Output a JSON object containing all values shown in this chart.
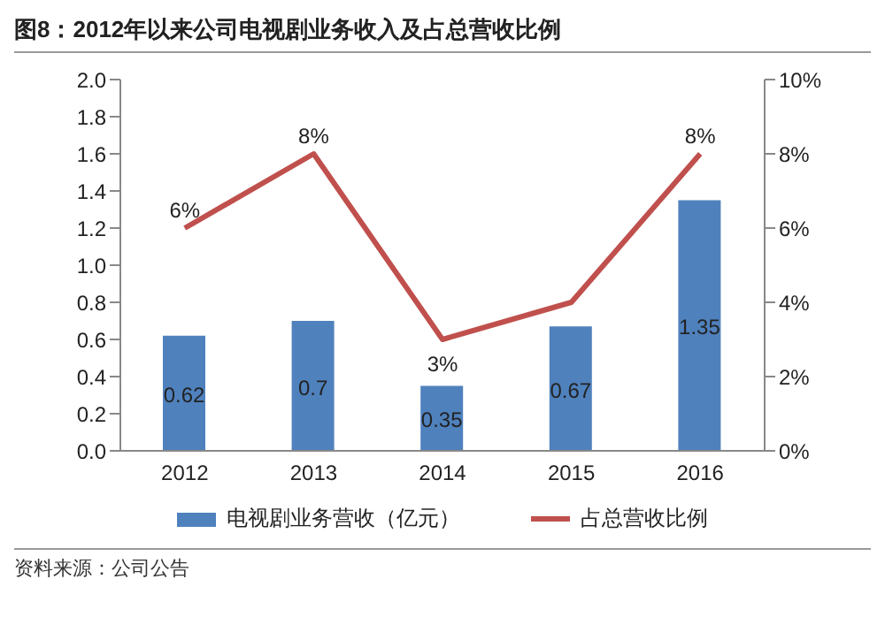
{
  "chart_data": {
    "type": "bar",
    "title": "图8：2012年以来公司电视剧业务收入及占总营收比例",
    "categories": [
      "2012",
      "2013",
      "2014",
      "2015",
      "2016"
    ],
    "series": [
      {
        "name": "电视剧业务营收（亿元）",
        "color": "#4f81bd",
        "values": [
          0.62,
          0.7,
          0.35,
          0.67,
          1.35
        ],
        "value_labels": [
          "0.62",
          "0.7",
          "0.35",
          "0.67",
          "1.35"
        ]
      },
      {
        "name": "占总营收比例",
        "type": "line",
        "axis": "y2",
        "color": "#c0504d",
        "values": [
          6,
          8,
          3,
          4,
          8
        ],
        "value_labels": [
          "6%",
          "8%",
          "3%",
          null,
          "8%"
        ]
      }
    ],
    "ylim": [
      0,
      2
    ],
    "yticks": [
      {
        "value": 0,
        "label": "0.0"
      },
      0.2,
      0.4,
      0.6,
      0.8,
      {
        "value": 1,
        "label": "1.0"
      },
      1.2,
      1.4,
      1.6,
      1.8,
      {
        "value": 2,
        "label": "2.0"
      }
    ],
    "y2lim": [
      0,
      10
    ],
    "y2ticks": [
      {
        "value": 0,
        "label": "0%"
      },
      {
        "value": 2,
        "label": "2%"
      },
      {
        "value": 4,
        "label": "4%"
      },
      {
        "value": 6,
        "label": "6%"
      },
      {
        "value": 8,
        "label": "8%"
      },
      {
        "value": 10,
        "label": "10%"
      }
    ],
    "grid": false,
    "legend": "bottom",
    "marker": "none",
    "annotations": [
      "资料来源：公司公告"
    ]
  }
}
